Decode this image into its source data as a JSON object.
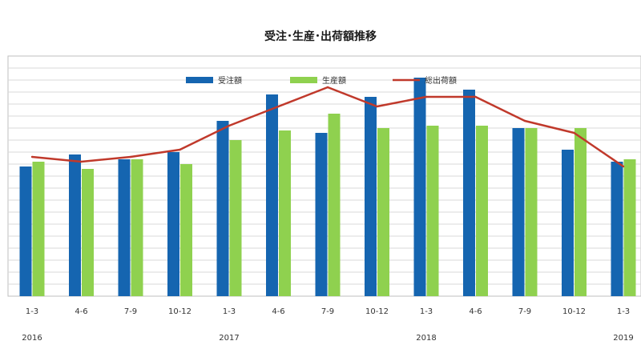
{
  "chart_data": {
    "type": "bar",
    "title": "受注･生産･出荷額推移",
    "categories": [
      "1-3",
      "4-6",
      "7-9",
      "10-12",
      "1-3",
      "4-6",
      "7-9",
      "10-12",
      "1-3",
      "4-6",
      "7-9",
      "10-12",
      "1-3"
    ],
    "year_labels": [
      {
        "label": "2016",
        "start_index": 0
      },
      {
        "label": "2017",
        "start_index": 4
      },
      {
        "label": "2018",
        "start_index": 8
      },
      {
        "label": "2019",
        "start_index": 12
      }
    ],
    "ylim": [
      0,
      100
    ],
    "grid": true,
    "legend_position": "top-center",
    "series": [
      {
        "name": "受注額",
        "type": "bar",
        "color": "#1565b0",
        "values": [
          54,
          59,
          57,
          60,
          73,
          84,
          68,
          83,
          91,
          86,
          70,
          61,
          56
        ]
      },
      {
        "name": "生産額",
        "type": "bar",
        "color": "#8fd14f",
        "values": [
          56,
          53,
          57,
          55,
          65,
          69,
          76,
          70,
          71,
          71,
          70,
          70,
          57
        ]
      },
      {
        "name": "総出荷額",
        "type": "line",
        "color": "#c0392b",
        "values": [
          58,
          56,
          58,
          61,
          71,
          79,
          87,
          79,
          83,
          83,
          73,
          68,
          54
        ]
      }
    ]
  }
}
